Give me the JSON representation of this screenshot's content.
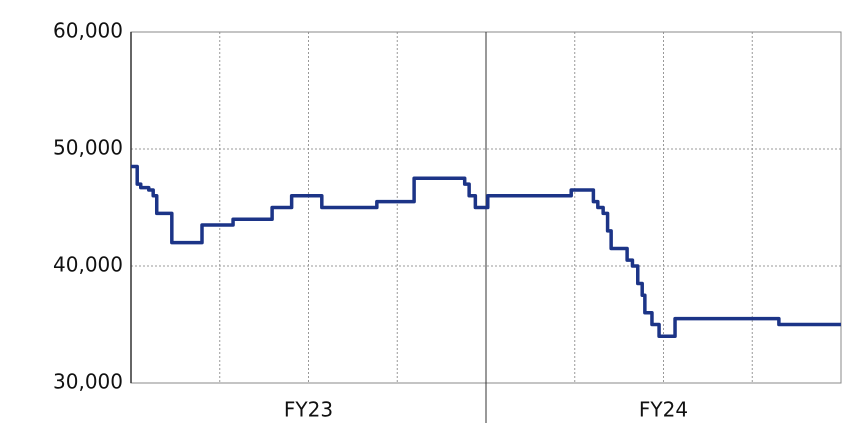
{
  "chart_data": {
    "type": "line",
    "step": "post",
    "x": [
      0,
      0.07,
      0.11,
      0.2,
      0.25,
      0.29,
      0.46,
      0.8,
      1.15,
      1.59,
      1.81,
      2.15,
      2.77,
      3.19,
      3.76,
      3.81,
      3.88,
      4.02,
      4.96,
      5.21,
      5.26,
      5.32,
      5.37,
      5.41,
      5.59,
      5.65,
      5.71,
      5.76,
      5.79,
      5.87,
      5.95,
      6.13,
      7.3,
      8
    ],
    "series": [
      {
        "color": "#1c3487",
        "values": [
          48500,
          47000,
          46700,
          46500,
          46000,
          44500,
          42000,
          43500,
          44000,
          45000,
          46000,
          45000,
          45500,
          47500,
          47000,
          46000,
          45000,
          46000,
          46500,
          45500,
          45000,
          44500,
          43000,
          41500,
          40500,
          40000,
          38500,
          37500,
          36000,
          35000,
          34000,
          35500,
          35000,
          35000
        ]
      }
    ],
    "xlim": [
      0,
      8
    ],
    "xgrid": [
      1,
      2,
      3,
      5,
      6,
      7
    ],
    "periods": [
      {
        "label": "FY23",
        "range": [
          0,
          4
        ]
      },
      {
        "label": "FY24",
        "range": [
          4,
          8
        ]
      }
    ],
    "ylim": [
      30000,
      60000
    ],
    "yticks": [
      {
        "value": 30000,
        "label": "30,000"
      },
      {
        "value": 40000,
        "label": "40,000"
      },
      {
        "value": 50000,
        "label": "50,000"
      },
      {
        "value": 60000,
        "label": "60,000"
      }
    ],
    "grid": true
  }
}
